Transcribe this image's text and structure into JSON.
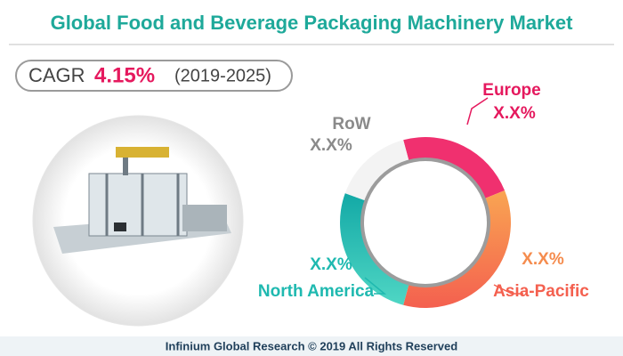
{
  "header": {
    "title": "Global Food and Beverage Packaging Machinery Market"
  },
  "cagr": {
    "label": "CAGR",
    "value": "4.15%",
    "period": "(2019-2025)"
  },
  "segments": [
    {
      "name": "Europe",
      "value_label": "X.X%"
    },
    {
      "name": "Asia-Pacific",
      "value_label": "X.X%"
    },
    {
      "name": "North America",
      "value_label": "X.X%"
    },
    {
      "name": "RoW",
      "value_label": "X.X%"
    }
  ],
  "footer": "Infinium Global Research © 2019 All Rights Reserved"
}
